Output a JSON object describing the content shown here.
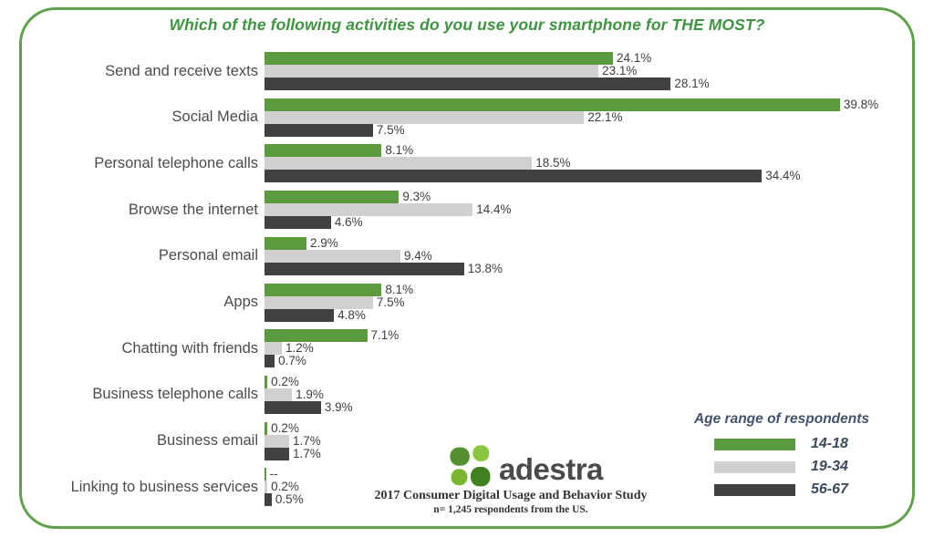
{
  "title": "Which of the following activities do you use your smartphone for THE MOST?",
  "chart_data": {
    "type": "bar",
    "orientation": "horizontal",
    "title": "Which of the following activities do you use your smartphone for THE MOST?",
    "categories": [
      "Send and receive texts",
      "Social Media",
      "Personal telephone calls",
      "Browse the internet",
      "Personal email",
      "Apps",
      "Chatting with friends",
      "Business telephone calls",
      "Business email",
      "Linking to business services"
    ],
    "series": [
      {
        "name": "14-18",
        "color": "#5b9a3d",
        "values": [
          24.1,
          39.8,
          8.1,
          9.3,
          2.9,
          8.1,
          7.1,
          0.2,
          0.2,
          0
        ],
        "labels": [
          "24.1%",
          "39.8%",
          "8.1%",
          "9.3%",
          "2.9%",
          "8.1%",
          "7.1%",
          "0.2%",
          "0.2%",
          "--"
        ]
      },
      {
        "name": "19-34",
        "color": "#d1d0ce",
        "values": [
          23.1,
          22.1,
          18.5,
          14.4,
          9.4,
          7.5,
          1.2,
          1.9,
          1.7,
          0.2
        ],
        "labels": [
          "23.1%",
          "22.1%",
          "18.5%",
          "14.4%",
          "9.4%",
          "7.5%",
          "1.2%",
          "1.9%",
          "1.7%",
          "0.2%"
        ]
      },
      {
        "name": "56-67",
        "color": "#414042",
        "values": [
          28.1,
          7.5,
          34.4,
          4.6,
          13.8,
          4.8,
          0.7,
          3.9,
          1.7,
          0.5
        ],
        "labels": [
          "28.1%",
          "7.5%",
          "34.4%",
          "4.6%",
          "13.8%",
          "4.8%",
          "0.7%",
          "3.9%",
          "1.7%",
          "0.5%"
        ]
      }
    ],
    "xlim": [
      0,
      42
    ],
    "grid": false,
    "legend_title": "Age range of respondents",
    "legend_position": "bottom-right"
  },
  "legend": {
    "title": "Age range of respondents",
    "entries": [
      {
        "label": "14-18",
        "color": "#5b9a3d"
      },
      {
        "label": "19-34",
        "color": "#d1d0ce"
      },
      {
        "label": "56-67",
        "color": "#414042"
      }
    ]
  },
  "footer": {
    "logo_text": "adestra",
    "study_line": "2017 Consumer Digital Usage and Behavior Study",
    "sample_line": "n= 1,245 respondents from the US."
  },
  "colors": {
    "title_green": "#3d9540",
    "border_green": "#5fa04b",
    "bar_green": "#5b9a3d",
    "bar_light_gray": "#d1d0ce",
    "bar_dark_gray": "#414042",
    "legend_text": "#3c4a5f"
  }
}
